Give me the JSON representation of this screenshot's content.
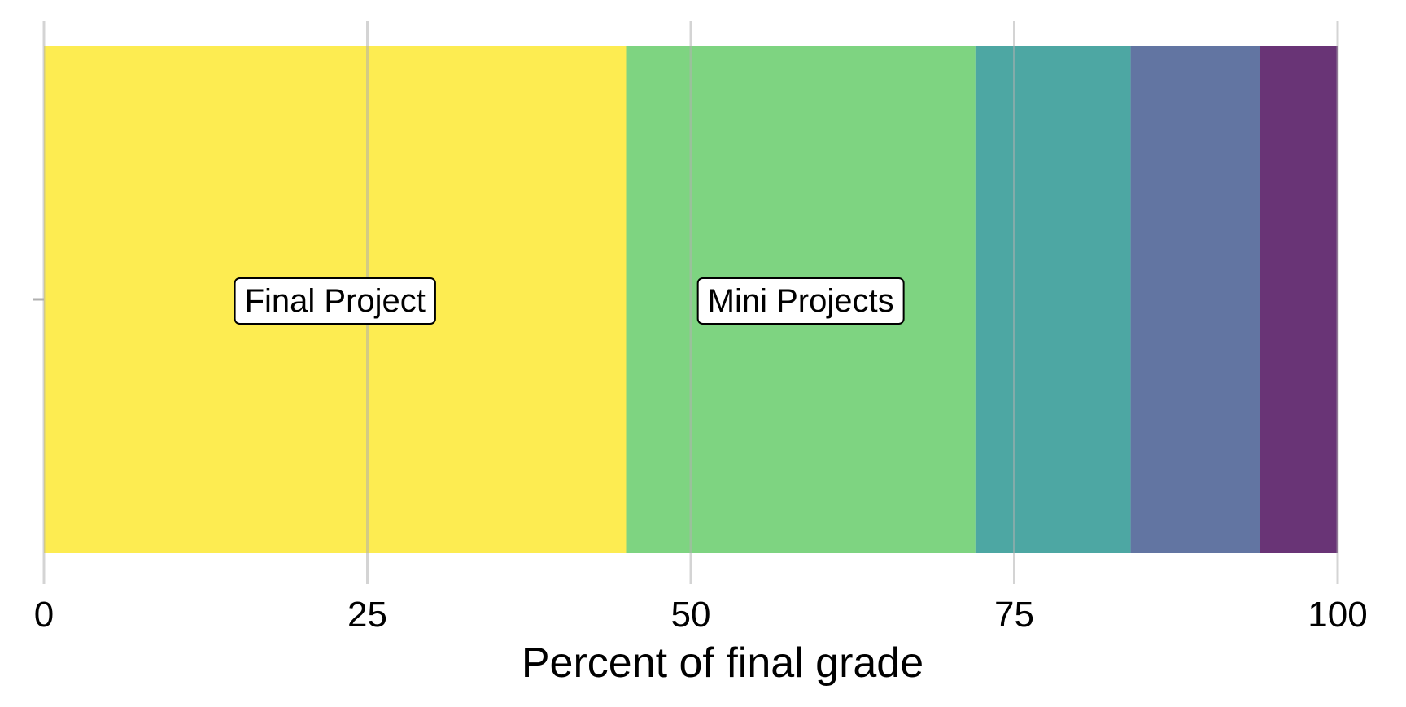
{
  "chart_data": {
    "type": "bar",
    "orientation": "horizontal",
    "stacked": true,
    "title": "",
    "xlabel": "Percent of final grade",
    "ylabel": "",
    "xlim": [
      0,
      100
    ],
    "x_ticks": [
      0,
      25,
      50,
      75,
      100
    ],
    "x_tick_labels": [
      "0",
      "25",
      "50",
      "75",
      "100"
    ],
    "grid": "vertical",
    "legend": "none",
    "segments": [
      {
        "label": "Final Project",
        "value": 45,
        "color": "#fde725",
        "label_shown": true
      },
      {
        "label": "Mini Projects",
        "value": 27,
        "color": "#5ec962",
        "label_shown": true
      },
      {
        "value": 12,
        "color": "#21918c",
        "label_shown": false
      },
      {
        "value": 10,
        "color": "#3b528b",
        "label_shown": false
      },
      {
        "value": 6,
        "color": "#440154",
        "label_shown": false
      }
    ]
  }
}
